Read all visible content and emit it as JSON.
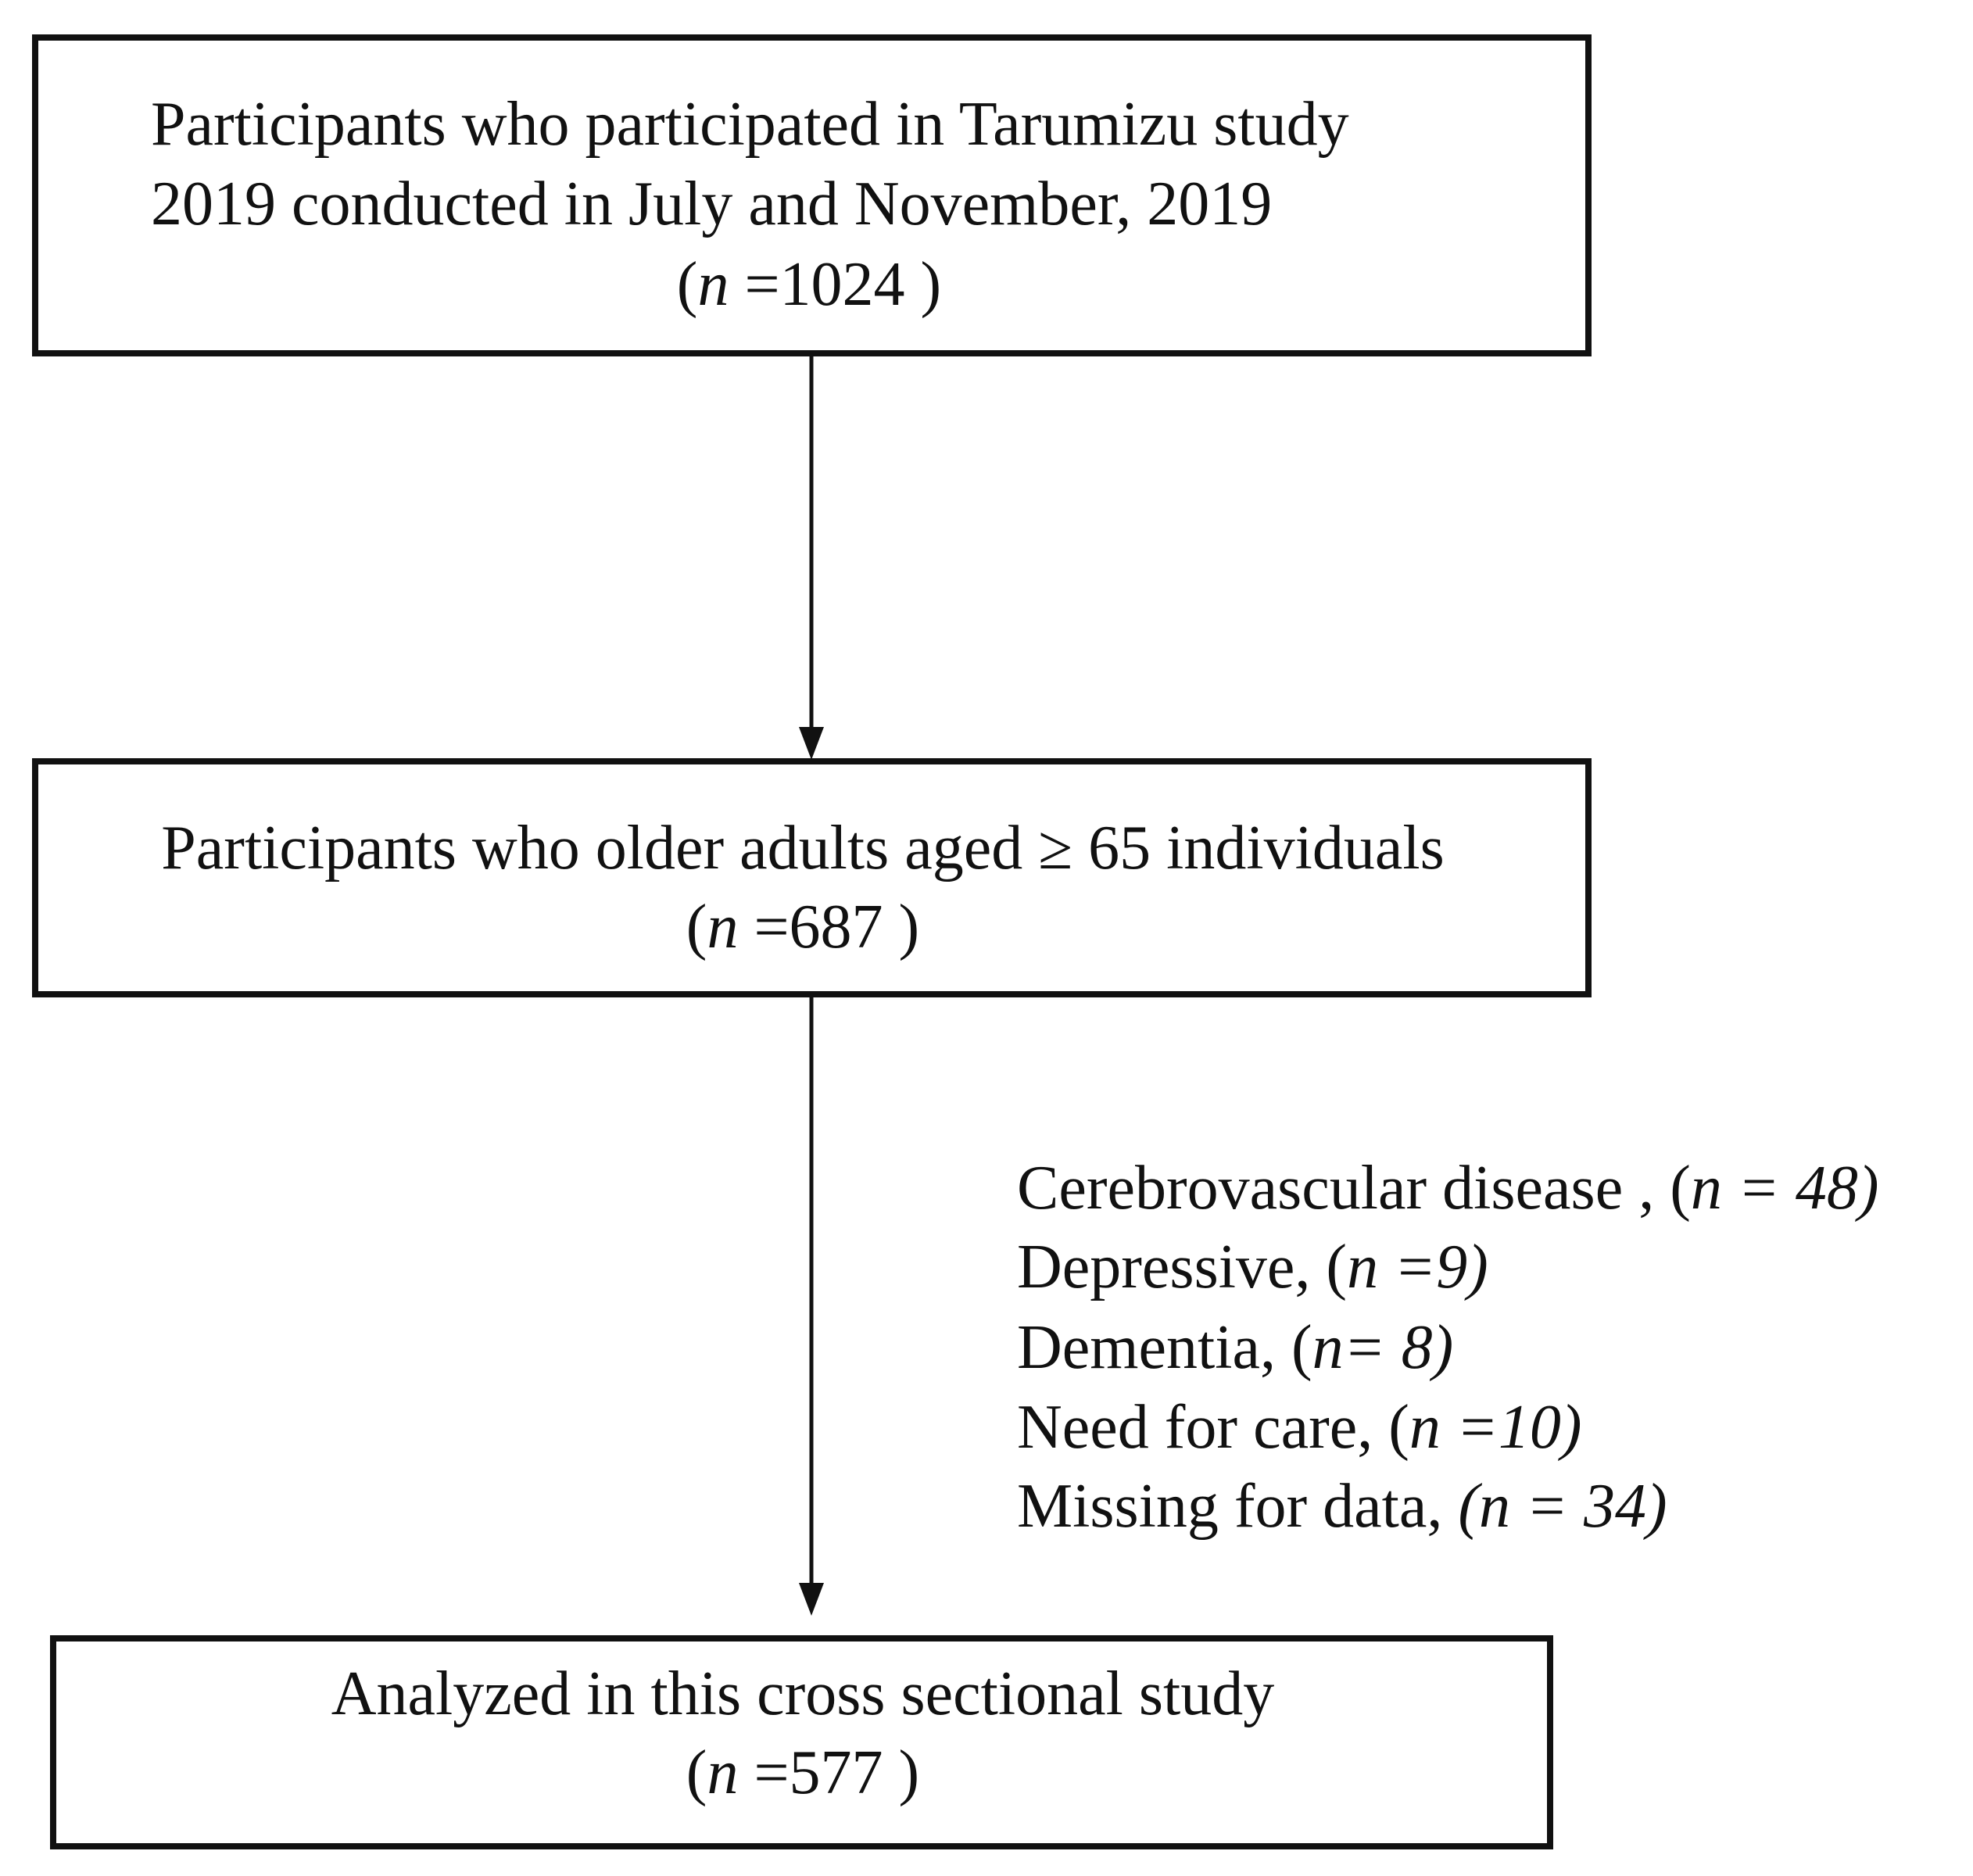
{
  "nodes": [
    {
      "lines": [
        "Participants who participated in Tarumizu study",
        "2019 conducted in July and November, 2019"
      ],
      "count": [
        {
          "text": "(",
          "italic": false
        },
        {
          "text": "n",
          "italic": true
        },
        {
          "text": " =1024 )",
          "italic": false
        }
      ]
    },
    {
      "lines": [
        "Participants who older adults aged ≥ 65 individuals"
      ],
      "count": [
        {
          "text": "(",
          "italic": false
        },
        {
          "text": "n",
          "italic": true
        },
        {
          "text": " =687 )",
          "italic": false
        }
      ]
    },
    {
      "lines": [
        "Analyzed in this cross sectional study"
      ],
      "count": [
        {
          "text": "(",
          "italic": false
        },
        {
          "text": "n",
          "italic": true
        },
        {
          "text": " =577 )",
          "italic": false
        }
      ]
    }
  ],
  "exclusions": [
    [
      {
        "text": "Cerebrovascular disease , (",
        "italic": false
      },
      {
        "text": "n = 48)",
        "italic": true
      }
    ],
    [
      {
        "text": "Depressive, (",
        "italic": false
      },
      {
        "text": "n =9)",
        "italic": true
      }
    ],
    [
      {
        "text": "Dementia, (",
        "italic": false
      },
      {
        "text": "n= 8)",
        "italic": true
      }
    ],
    [
      {
        "text": "Need for care, (",
        "italic": false
      },
      {
        "text": "n =10)",
        "italic": true
      }
    ],
    [
      {
        "text": "Missing for data, ",
        "italic": false
      },
      {
        "text": "(n = 34)",
        "italic": true
      }
    ]
  ]
}
